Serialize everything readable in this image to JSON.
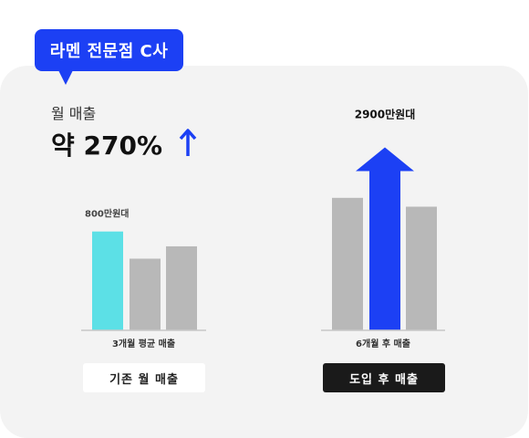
{
  "badge": {
    "label": "라멘 전문점 C사"
  },
  "metric": {
    "label": "월 매출",
    "value": "약 270%"
  },
  "colors": {
    "accent": "#1c40f4",
    "highlight": "#5ce0e6",
    "bar": "#b8b8b8",
    "dark": "#1a1a1a"
  },
  "buttons": {
    "before": "기존 월 매출",
    "after": "도입 후 매출"
  },
  "chart_data": [
    {
      "type": "bar",
      "categories": [
        "",
        "",
        ""
      ],
      "values": [
        800,
        580,
        680
      ],
      "data_labels": [
        "800만원대",
        "",
        ""
      ],
      "xlabel": "3개월 평균 매출",
      "ylabel": "",
      "ylim": [
        0,
        1300
      ]
    },
    {
      "type": "bar",
      "categories": [
        "",
        "",
        ""
      ],
      "values": [
        2100,
        2900,
        1960
      ],
      "data_labels": [
        "",
        "2900만원대",
        ""
      ],
      "highlight_index": 1,
      "xlabel": "6개월 후 매출",
      "ylabel": "",
      "ylim": [
        0,
        4050
      ]
    }
  ]
}
